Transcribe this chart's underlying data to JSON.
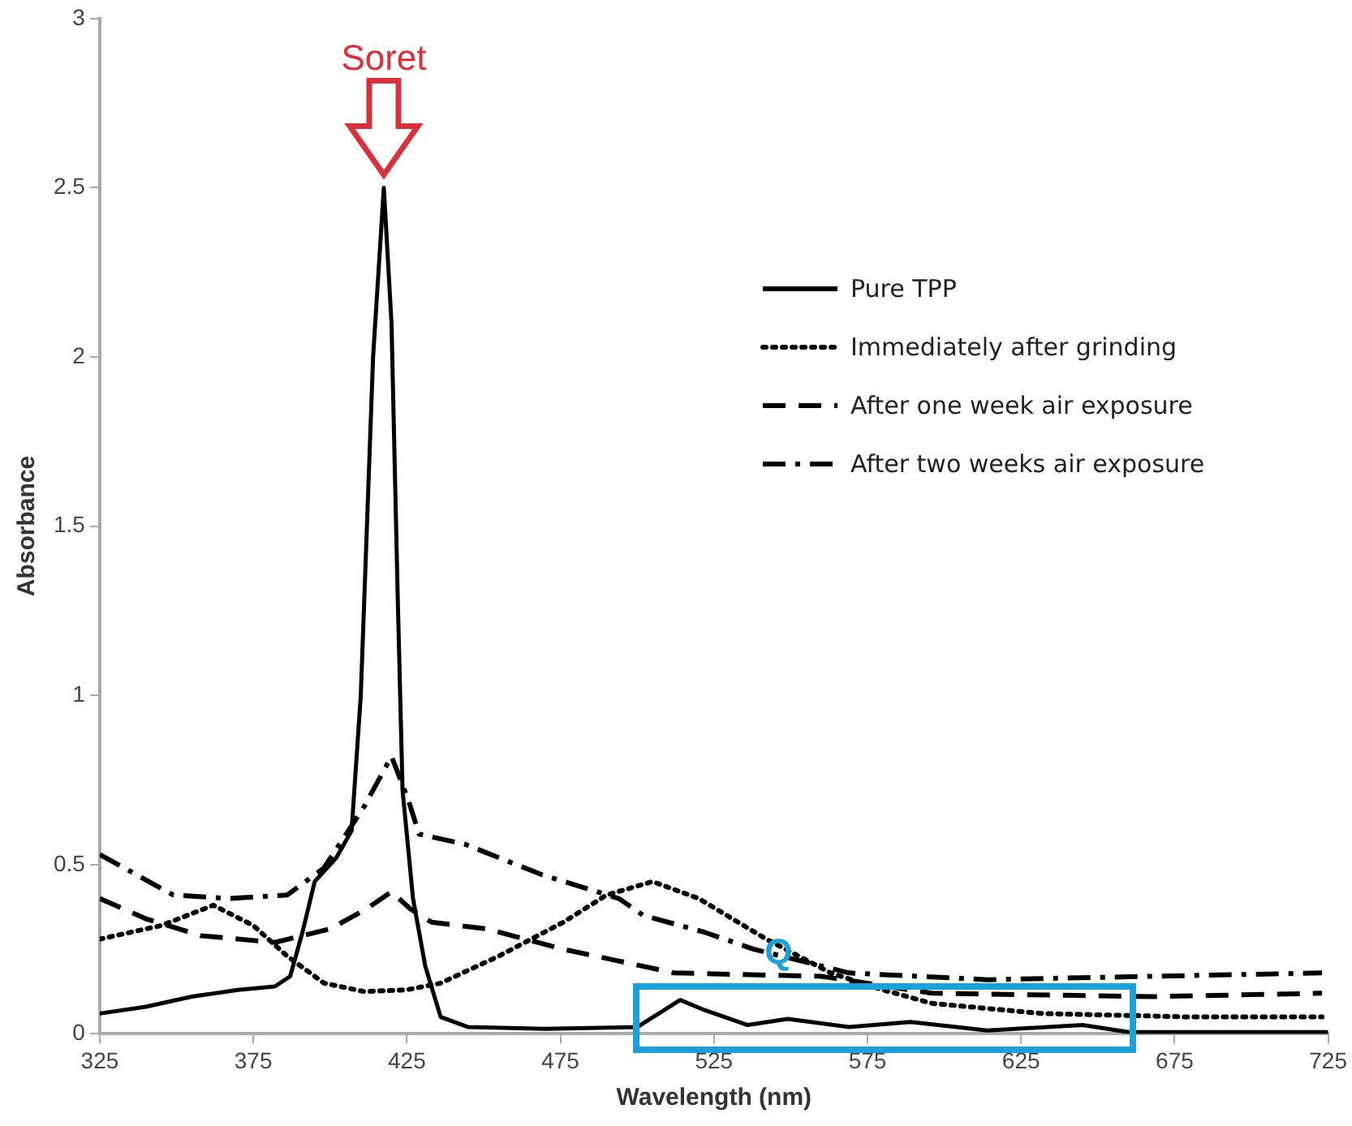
{
  "chart_data": {
    "type": "line",
    "xlabel": "Wavelength (nm)",
    "ylabel": "Absorbance",
    "xlim": [
      325,
      725
    ],
    "xticks": [
      325,
      375,
      425,
      475,
      525,
      575,
      625,
      675,
      725
    ],
    "ylim": [
      0,
      3
    ],
    "yticks": [
      0,
      0.5,
      1,
      1.5,
      2,
      2.5,
      3
    ],
    "grid": false,
    "legend": "top right",
    "marker": "none",
    "series": [
      {
        "name": "Pure TPP",
        "color": "#000000",
        "line_style": "solid",
        "x": [
          325,
          340,
          355,
          370,
          382,
          387,
          391,
          395,
          402,
          407,
          410,
          414,
          417.5,
          420,
          422,
          423.6,
          427,
          431,
          436,
          445,
          470,
          500,
          507,
          514,
          522,
          536,
          549,
          569,
          589,
          614,
          645,
          660,
          725
        ],
        "values": [
          0.06,
          0.08,
          0.11,
          0.13,
          0.14,
          0.17,
          0.3,
          0.45,
          0.52,
          0.6,
          1.0,
          2.0,
          2.5,
          2.1,
          1.3,
          0.72,
          0.4,
          0.2,
          0.05,
          0.02,
          0.015,
          0.02,
          0.06,
          0.1,
          0.07,
          0.026,
          0.044,
          0.02,
          0.035,
          0.01,
          0.026,
          0.005,
          0.005
        ]
      },
      {
        "name": "Immediately after grinding",
        "color": "#000000",
        "line_style": "dotted",
        "x": [
          325,
          345,
          362,
          375,
          386,
          398,
          411,
          425,
          436,
          455,
          476,
          490,
          505,
          520,
          542,
          563,
          580,
          596,
          632,
          680,
          723
        ],
        "values": [
          0.28,
          0.32,
          0.38,
          0.32,
          0.23,
          0.15,
          0.125,
          0.13,
          0.15,
          0.23,
          0.33,
          0.41,
          0.45,
          0.4,
          0.28,
          0.18,
          0.13,
          0.09,
          0.06,
          0.05,
          0.05
        ]
      },
      {
        "name": "After one week air exposure",
        "color": "#000000",
        "line_style": "dashed",
        "x": [
          325,
          340,
          358,
          382,
          400,
          412,
          420,
          426,
          433,
          451,
          476,
          512,
          560,
          596,
          668,
          723
        ],
        "values": [
          0.4,
          0.34,
          0.29,
          0.27,
          0.31,
          0.37,
          0.42,
          0.37,
          0.33,
          0.31,
          0.25,
          0.18,
          0.17,
          0.12,
          0.11,
          0.12
        ]
      },
      {
        "name": "After two weeks air exposure",
        "color": "#000000",
        "line_style": "dashdot",
        "x": [
          325,
          349,
          367,
          386,
          398,
          411,
          420,
          425.5,
          429,
          444,
          469,
          494,
          502,
          522,
          538,
          569,
          614,
          668,
          723
        ],
        "values": [
          0.53,
          0.41,
          0.4,
          0.41,
          0.49,
          0.67,
          0.82,
          0.69,
          0.59,
          0.56,
          0.47,
          0.4,
          0.35,
          0.3,
          0.25,
          0.18,
          0.16,
          0.17,
          0.18
        ]
      }
    ],
    "annotations": [
      "Soret",
      {
        "text": "Q",
        "x": 546,
        "y": 0.24
      }
    ]
  }
}
